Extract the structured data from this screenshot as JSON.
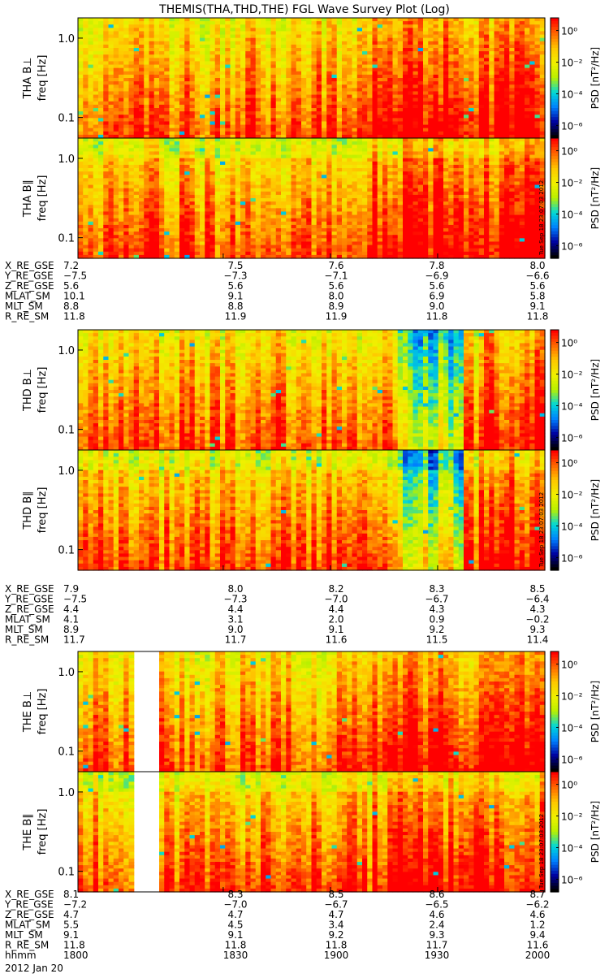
{
  "title": "THEMIS(THA,THD,THE) FGL Wave Survey Plot (Log)",
  "stamp": "Tue Sep 18 23:07:03 2012",
  "date_label": "2012 Jan 20",
  "colorbar": {
    "label": "PSD [nT²/Hz]",
    "ticks": [
      "10⁰",
      "10⁻²",
      "10⁻⁴",
      "10⁻⁶"
    ],
    "tick_exps": [
      0,
      -2,
      -4,
      -6
    ],
    "stops": [
      "#ff0000",
      "#ff6a00",
      "#ffc800",
      "#f0f000",
      "#b8f000",
      "#00d8d8",
      "#0080ff",
      "#0000a0",
      "#000000"
    ]
  },
  "axes": {
    "ylabel_unit": "freq [Hz]",
    "yticks": [
      "1.0",
      "0.1"
    ],
    "ytick_values": [
      1.0,
      0.1
    ],
    "ylim": [
      0.055,
      1.8
    ],
    "yscale": "log"
  },
  "chart_data": [
    {
      "type": "heatmap",
      "probe": "THA",
      "panels": [
        {
          "ylabel": "THA B⊥",
          "component": "perp"
        },
        {
          "ylabel": "THA B∥",
          "component": "par"
        }
      ],
      "ephemeris": {
        "names": [
          "X_RE_GSE",
          "Y_RE_GSE",
          "Z_RE_GSE",
          "MLAT_SM",
          "MLT_SM",
          "R_RE_SM"
        ],
        "values": [
          [
            "7.2",
            "7.5",
            "7.6",
            "7.8",
            "8.0"
          ],
          [
            "−7.5",
            "−7.3",
            "−7.1",
            "−6.9",
            "−6.6"
          ],
          [
            "5.6",
            "5.6",
            "5.6",
            "5.6",
            "5.6"
          ],
          [
            "10.1",
            "9.1",
            "8.0",
            "6.9",
            "5.8"
          ],
          [
            "8.8",
            "8.8",
            "8.9",
            "9.0",
            "9.1"
          ],
          [
            "11.8",
            "11.9",
            "11.9",
            "11.8",
            "11.8"
          ]
        ]
      }
    },
    {
      "type": "heatmap",
      "probe": "THD",
      "panels": [
        {
          "ylabel": "THD B⊥",
          "component": "perp"
        },
        {
          "ylabel": "THD B∥",
          "component": "par"
        }
      ],
      "ephemeris": {
        "names": [
          "X_RE_GSE",
          "Y_RE_GSE",
          "Z_RE_GSE",
          "MLAT_SM",
          "MLT_SM",
          "R_RE_SM"
        ],
        "values": [
          [
            "7.9",
            "8.0",
            "8.2",
            "8.3",
            "8.5"
          ],
          [
            "−7.5",
            "−7.3",
            "−7.0",
            "−6.7",
            "−6.4"
          ],
          [
            "4.4",
            "4.4",
            "4.4",
            "4.3",
            "4.3"
          ],
          [
            "4.1",
            "3.1",
            "2.0",
            "0.9",
            "−0.2"
          ],
          [
            "8.9",
            "9.0",
            "9.1",
            "9.2",
            "9.3"
          ],
          [
            "11.7",
            "11.7",
            "11.6",
            "11.5",
            "11.4"
          ]
        ]
      }
    },
    {
      "type": "heatmap",
      "probe": "THE",
      "panels": [
        {
          "ylabel": "THE B⊥",
          "component": "perp"
        },
        {
          "ylabel": "THE B∥",
          "component": "par"
        }
      ],
      "ephemeris": {
        "names": [
          "X_RE_GSE",
          "Y_RE_GSE",
          "Z_RE_GSE",
          "MLAT_SM",
          "MLT_SM",
          "R_RE_SM",
          "hhmm"
        ],
        "values": [
          [
            "8.1",
            "8.3",
            "8.5",
            "8.6",
            "8.7"
          ],
          [
            "−7.2",
            "−7.0",
            "−6.7",
            "−6.5",
            "−6.2"
          ],
          [
            "4.7",
            "4.7",
            "4.7",
            "4.6",
            "4.6"
          ],
          [
            "5.5",
            "4.5",
            "3.4",
            "2.4",
            "1.2"
          ],
          [
            "9.1",
            "9.1",
            "9.2",
            "9.3",
            "9.4"
          ],
          [
            "11.8",
            "11.8",
            "11.8",
            "11.7",
            "11.6"
          ],
          [
            "1800",
            "1830",
            "1900",
            "1930",
            "2000"
          ]
        ]
      }
    }
  ]
}
